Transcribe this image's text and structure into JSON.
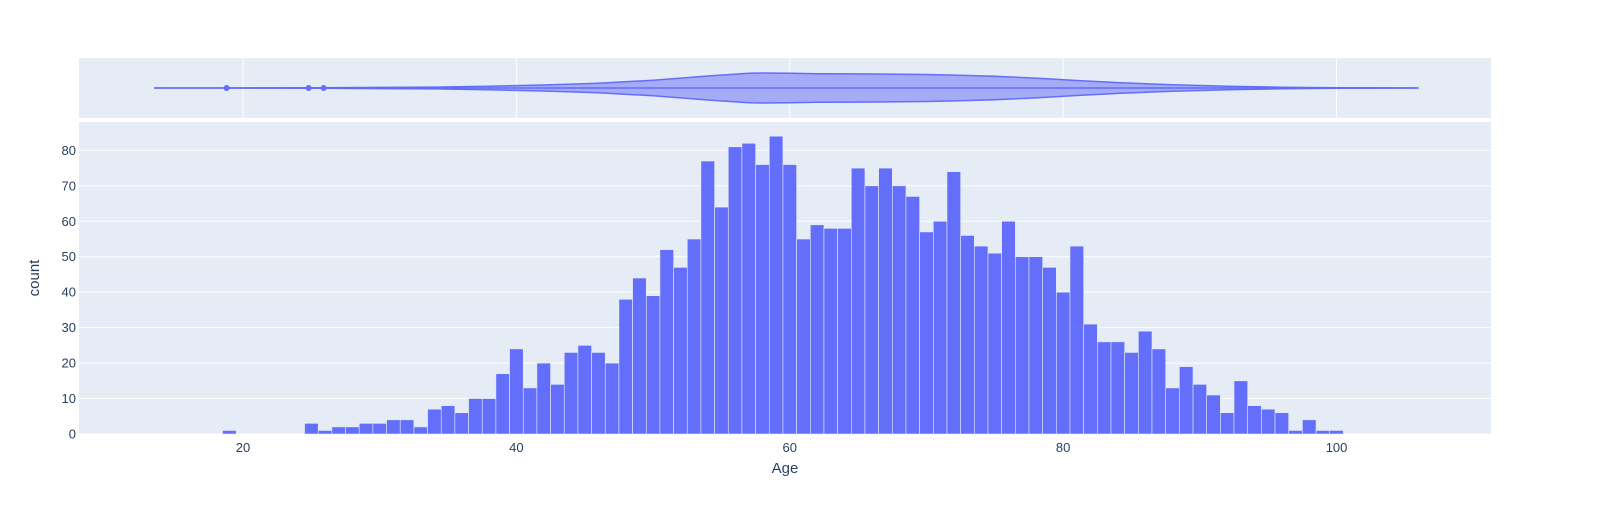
{
  "colors": {
    "plot_bg": "#E5ECF6",
    "grid": "#ffffff",
    "bar_fill": "#636efa",
    "violin_fill": "#a5abf7",
    "violin_line": "#636efa",
    "text": "#2a3f5f"
  },
  "chart_data": [
    {
      "type": "violin",
      "orientation": "horizontal",
      "x_axis_shared": true,
      "outlier_points": [
        18.8,
        24.8,
        25.9
      ],
      "density_profile": [
        [
          13.5,
          0
        ],
        [
          18,
          0.0
        ],
        [
          22,
          0.01
        ],
        [
          26,
          0.02
        ],
        [
          30,
          0.04
        ],
        [
          34,
          0.06
        ],
        [
          38,
          0.12
        ],
        [
          42,
          0.2
        ],
        [
          46,
          0.32
        ],
        [
          50,
          0.52
        ],
        [
          54,
          0.8
        ],
        [
          57,
          0.98
        ],
        [
          58,
          1.0
        ],
        [
          60,
          0.98
        ],
        [
          62,
          0.95
        ],
        [
          65,
          0.94
        ],
        [
          68,
          0.92
        ],
        [
          70,
          0.9
        ],
        [
          72,
          0.86
        ],
        [
          75,
          0.78
        ],
        [
          78,
          0.66
        ],
        [
          81,
          0.5
        ],
        [
          84,
          0.36
        ],
        [
          88,
          0.22
        ],
        [
          92,
          0.12
        ],
        [
          96,
          0.05
        ],
        [
          100,
          0.02
        ],
        [
          104,
          0.005
        ],
        [
          106,
          0
        ]
      ]
    },
    {
      "type": "bar",
      "subtype": "histogram",
      "xlabel": "Age",
      "ylabel": "count",
      "xlim": [
        8,
        111.3
      ],
      "ylim": [
        0,
        88
      ],
      "x_ticks": [
        20,
        40,
        60,
        80,
        100
      ],
      "y_ticks": [
        0,
        10,
        20,
        30,
        40,
        50,
        60,
        70,
        80
      ],
      "bin_width": 1,
      "bins": [
        [
          18.5,
          1
        ],
        [
          24.5,
          3
        ],
        [
          25.5,
          1
        ],
        [
          26.5,
          2
        ],
        [
          27.5,
          2
        ],
        [
          28.5,
          3
        ],
        [
          29.5,
          3
        ],
        [
          30.5,
          4
        ],
        [
          31.5,
          4
        ],
        [
          32.5,
          2
        ],
        [
          33.5,
          7
        ],
        [
          34.5,
          8
        ],
        [
          35.5,
          6
        ],
        [
          36.5,
          10
        ],
        [
          37.5,
          10
        ],
        [
          38.5,
          17
        ],
        [
          39.5,
          24
        ],
        [
          40.5,
          13
        ],
        [
          41.5,
          20
        ],
        [
          42.5,
          14
        ],
        [
          43.5,
          23
        ],
        [
          44.5,
          25
        ],
        [
          45.5,
          23
        ],
        [
          46.5,
          20
        ],
        [
          47.5,
          38
        ],
        [
          48.5,
          44
        ],
        [
          49.5,
          39
        ],
        [
          50.5,
          52
        ],
        [
          51.5,
          47
        ],
        [
          52.5,
          55
        ],
        [
          53.5,
          77
        ],
        [
          54.5,
          64
        ],
        [
          55.5,
          81
        ],
        [
          56.5,
          82
        ],
        [
          57.5,
          76
        ],
        [
          58.5,
          84
        ],
        [
          59.5,
          76
        ],
        [
          60.5,
          55
        ],
        [
          61.5,
          59
        ],
        [
          62.5,
          58
        ],
        [
          63.5,
          58
        ],
        [
          64.5,
          75
        ],
        [
          65.5,
          70
        ],
        [
          66.5,
          75
        ],
        [
          67.5,
          70
        ],
        [
          68.5,
          67
        ],
        [
          69.5,
          57
        ],
        [
          70.5,
          60
        ],
        [
          71.5,
          74
        ],
        [
          72.5,
          56
        ],
        [
          73.5,
          53
        ],
        [
          74.5,
          51
        ],
        [
          75.5,
          60
        ],
        [
          76.5,
          50
        ],
        [
          77.5,
          50
        ],
        [
          78.5,
          47
        ],
        [
          79.5,
          40
        ],
        [
          80.5,
          53
        ],
        [
          81.5,
          31
        ],
        [
          82.5,
          26
        ],
        [
          83.5,
          26
        ],
        [
          84.5,
          23
        ],
        [
          85.5,
          29
        ],
        [
          86.5,
          24
        ],
        [
          87.5,
          13
        ],
        [
          88.5,
          19
        ],
        [
          89.5,
          14
        ],
        [
          90.5,
          11
        ],
        [
          91.5,
          6
        ],
        [
          92.5,
          15
        ],
        [
          93.5,
          8
        ],
        [
          94.5,
          7
        ],
        [
          95.5,
          6
        ],
        [
          96.5,
          1
        ],
        [
          97.5,
          4
        ],
        [
          98.5,
          1
        ],
        [
          99.5,
          1
        ]
      ]
    }
  ]
}
